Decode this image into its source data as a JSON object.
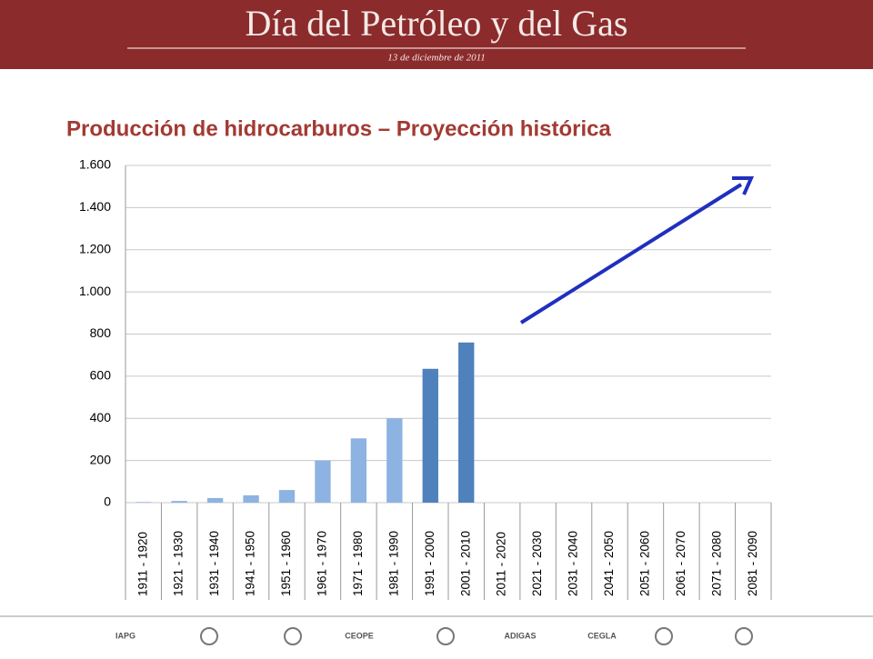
{
  "header": {
    "title": "Día del Petróleo y del Gas",
    "date": "13 de diciembre de 2011"
  },
  "chart_data": {
    "type": "bar",
    "title": "Producción de hidrocarburos – Proyección histórica",
    "categories": [
      "1911 - 1920",
      "1921 - 1930",
      "1931 - 1940",
      "1941 - 1950",
      "1951 - 1960",
      "1961 - 1970",
      "1971 - 1980",
      "1981 - 1990",
      "1991 - 2000",
      "2001 - 2010",
      "2011 - 2020",
      "2021 - 2030",
      "2031 - 2040",
      "2041 - 2050",
      "2051 - 2060",
      "2061 - 2070",
      "2071 - 2080",
      "2081 - 2090"
    ],
    "values": [
      3,
      8,
      22,
      35,
      60,
      200,
      305,
      400,
      635,
      760,
      null,
      null,
      null,
      null,
      null,
      null,
      null,
      null
    ],
    "colors": [
      "#8db3e2",
      "#8db3e2",
      "#8db3e2",
      "#8db3e2",
      "#8db3e2",
      "#8db3e2",
      "#8db3e2",
      "#8db3e2",
      "#4f81bd",
      "#4f81bd",
      null,
      null,
      null,
      null,
      null,
      null,
      null,
      null
    ],
    "ylim": [
      0,
      1600
    ],
    "yticks": [
      0,
      200,
      400,
      600,
      800,
      {
        "value": 1000,
        "label": "1.000"
      },
      {
        "value": 1200,
        "label": "1.200"
      },
      {
        "value": 1400,
        "label": "1.400"
      },
      {
        "value": 1600,
        "label": "1.600"
      }
    ],
    "grid": true
  },
  "footer": {
    "logos": [
      "IAPG",
      "CEOPE",
      "ADIGAS",
      "CEGLA"
    ]
  }
}
